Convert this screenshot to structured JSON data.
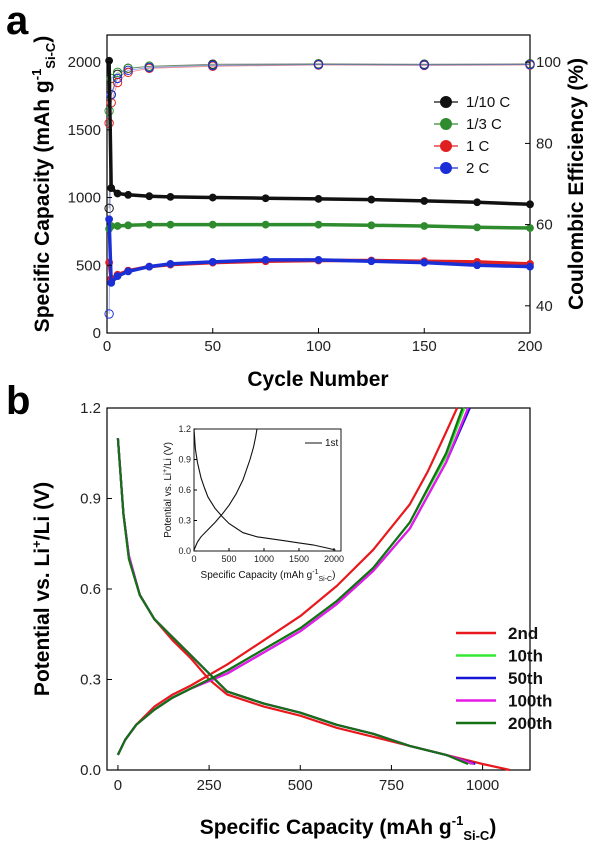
{
  "chart_data": [
    {
      "panel_label": "a",
      "type": "scatter",
      "xlabel": "Cycle Number",
      "ylabel_main": "Specific Capacity (mAh g",
      "ylabel_sup": "-1",
      "ylabel_sub": "Si-C",
      "y2label": "Coulombic Efficiency (%)",
      "xlim": [
        0,
        200
      ],
      "ylim": [
        0,
        2200
      ],
      "y2lim": [
        33.3,
        106.7
      ],
      "xticks": [
        "0",
        "50",
        "100",
        "150",
        "200"
      ],
      "yticks": [
        "0",
        "500",
        "1000",
        "1500",
        "2000"
      ],
      "y2ticks": [
        "40",
        "60",
        "80",
        "100"
      ],
      "legend": {
        "position": "right",
        "entries": [
          "1/10 C",
          "1/3 C",
          "1 C",
          "2 C"
        ]
      },
      "series": [
        {
          "name": "1/10 C",
          "color": "#111111",
          "capacity": {
            "x": [
              1,
              2,
              5,
              10,
              20,
              30,
              50,
              75,
              100,
              125,
              150,
              175,
              200
            ],
            "y": [
              2010,
              1070,
              1030,
              1020,
              1010,
              1005,
              1000,
              995,
              990,
              985,
              975,
              965,
              950
            ]
          },
          "efficiency": {
            "x": [
              1,
              2,
              5,
              10,
              20,
              50,
              100,
              150,
              200
            ],
            "y": [
              64,
              92,
              97,
              98.5,
              99,
              99.5,
              99.6,
              99.5,
              99.6
            ]
          }
        },
        {
          "name": "1/3 C",
          "color": "#2e8b2e",
          "capacity": {
            "x": [
              1,
              2,
              5,
              10,
              20,
              30,
              50,
              75,
              100,
              125,
              150,
              175,
              200
            ],
            "y": [
              770,
              790,
              790,
              795,
              800,
              800,
              800,
              800,
              800,
              795,
              790,
              780,
              775
            ]
          },
          "efficiency": {
            "x": [
              1,
              2,
              5,
              10,
              20,
              50,
              100,
              150,
              200
            ],
            "y": [
              88,
              96,
              97.5,
              98.5,
              99,
              99.3,
              99.5,
              99.4,
              99.5
            ]
          }
        },
        {
          "name": "1 C",
          "color": "#e02020",
          "capacity": {
            "x": [
              1,
              2,
              5,
              10,
              20,
              30,
              50,
              75,
              100,
              125,
              150,
              175,
              200
            ],
            "y": [
              520,
              400,
              430,
              460,
              490,
              505,
              520,
              530,
              535,
              535,
              530,
              525,
              510
            ]
          },
          "efficiency": {
            "x": [
              1,
              2,
              5,
              10,
              20,
              50,
              100,
              150,
              200
            ],
            "y": [
              85,
              90,
              95,
              97.5,
              98.5,
              99,
              99.3,
              99.2,
              99.3
            ]
          }
        },
        {
          "name": "2 C",
          "color": "#1b2fd6",
          "capacity": {
            "x": [
              1,
              2,
              5,
              10,
              20,
              30,
              50,
              75,
              100,
              125,
              150,
              175,
              200
            ],
            "y": [
              840,
              370,
              420,
              455,
              490,
              510,
              525,
              540,
              540,
              530,
              520,
              500,
              490
            ]
          },
          "efficiency": {
            "x": [
              1,
              2,
              5,
              10,
              20,
              50,
              100,
              150,
              200
            ],
            "y": [
              38,
              92,
              96,
              98,
              98.7,
              99.2,
              99.4,
              99.3,
              99.4
            ]
          }
        }
      ]
    },
    {
      "panel_label": "b",
      "type": "line",
      "xlabel_main": "Specific Capacity (mAh g",
      "xlabel_sup": "-1",
      "xlabel_sub": "Si-C",
      "ylabel_main": "Potential vs. Li",
      "ylabel_sup": "+",
      "ylabel_rest": "/Li (V)",
      "xlim": [
        -30,
        1130
      ],
      "ylim": [
        0.0,
        1.2
      ],
      "xticks": [
        "0",
        "250",
        "500",
        "750",
        "1000"
      ],
      "yticks": [
        "0.0",
        "0.3",
        "0.6",
        "0.9",
        "1.2"
      ],
      "legend": {
        "position": "center-right",
        "entries": [
          "2nd",
          "10th",
          "50th",
          "100th",
          "200th"
        ]
      },
      "series": [
        {
          "name": "2nd",
          "color": "#e8191d",
          "discharge": {
            "x": [
              0,
              15,
              30,
              60,
              100,
              150,
              200,
              250,
              300,
              400,
              500,
              600,
              700,
              800,
              900,
              1000,
              1075
            ],
            "y": [
              1.1,
              0.85,
              0.7,
              0.58,
              0.5,
              0.43,
              0.37,
              0.3,
              0.25,
              0.21,
              0.18,
              0.14,
              0.11,
              0.08,
              0.05,
              0.02,
              0.0
            ]
          },
          "charge": {
            "x": [
              0,
              20,
              50,
              100,
              150,
              200,
              300,
              400,
              500,
              600,
              700,
              800,
              850,
              900,
              930
            ],
            "y": [
              0.05,
              0.1,
              0.15,
              0.21,
              0.25,
              0.28,
              0.35,
              0.43,
              0.51,
              0.61,
              0.73,
              0.88,
              0.99,
              1.12,
              1.2
            ]
          }
        },
        {
          "name": "10th",
          "color": "#33e833",
          "discharge": {
            "x": [
              0,
              15,
              30,
              60,
              100,
              150,
              200,
              250,
              300,
              400,
              500,
              600,
              700,
              800,
              900,
              970
            ],
            "y": [
              1.1,
              0.85,
              0.7,
              0.58,
              0.5,
              0.44,
              0.38,
              0.32,
              0.26,
              0.22,
              0.19,
              0.15,
              0.12,
              0.08,
              0.05,
              0.02
            ]
          },
          "charge": {
            "x": [
              0,
              20,
              50,
              100,
              150,
              200,
              300,
              400,
              500,
              600,
              700,
              800,
              900,
              950
            ],
            "y": [
              0.05,
              0.1,
              0.15,
              0.2,
              0.24,
              0.27,
              0.33,
              0.4,
              0.47,
              0.56,
              0.67,
              0.82,
              1.04,
              1.2
            ]
          }
        },
        {
          "name": "50th",
          "color": "#1515d6",
          "discharge": {
            "x": [
              0,
              15,
              30,
              60,
              100,
              150,
              200,
              250,
              300,
              400,
              500,
              600,
              700,
              800,
              900,
              980
            ],
            "y": [
              1.1,
              0.85,
              0.71,
              0.58,
              0.5,
              0.44,
              0.38,
              0.32,
              0.26,
              0.22,
              0.19,
              0.15,
              0.12,
              0.08,
              0.05,
              0.02
            ]
          },
          "charge": {
            "x": [
              0,
              20,
              50,
              100,
              150,
              200,
              300,
              400,
              500,
              600,
              700,
              800,
              900,
              965
            ],
            "y": [
              0.05,
              0.1,
              0.15,
              0.2,
              0.24,
              0.27,
              0.32,
              0.39,
              0.46,
              0.55,
              0.66,
              0.8,
              1.02,
              1.2
            ]
          }
        },
        {
          "name": "100th",
          "color": "#e81ae8",
          "discharge": {
            "x": [
              0,
              15,
              30,
              60,
              100,
              150,
              200,
              250,
              300,
              400,
              500,
              600,
              700,
              800,
              900,
              975
            ],
            "y": [
              1.1,
              0.85,
              0.71,
              0.58,
              0.5,
              0.44,
              0.38,
              0.32,
              0.26,
              0.22,
              0.19,
              0.15,
              0.12,
              0.08,
              0.05,
              0.02
            ]
          },
          "charge": {
            "x": [
              0,
              20,
              50,
              100,
              150,
              200,
              300,
              400,
              500,
              600,
              700,
              800,
              900,
              960
            ],
            "y": [
              0.05,
              0.1,
              0.15,
              0.2,
              0.24,
              0.27,
              0.32,
              0.39,
              0.46,
              0.55,
              0.66,
              0.8,
              1.02,
              1.2
            ]
          }
        },
        {
          "name": "200th",
          "color": "#157015",
          "discharge": {
            "x": [
              0,
              15,
              30,
              60,
              100,
              150,
              200,
              250,
              300,
              400,
              500,
              600,
              700,
              800,
              900,
              960
            ],
            "y": [
              1.1,
              0.85,
              0.7,
              0.58,
              0.5,
              0.44,
              0.38,
              0.32,
              0.26,
              0.22,
              0.19,
              0.15,
              0.12,
              0.08,
              0.05,
              0.02
            ]
          },
          "charge": {
            "x": [
              0,
              20,
              50,
              100,
              150,
              200,
              300,
              400,
              500,
              600,
              700,
              800,
              900,
              945
            ],
            "y": [
              0.05,
              0.1,
              0.15,
              0.2,
              0.24,
              0.27,
              0.33,
              0.4,
              0.47,
              0.56,
              0.67,
              0.82,
              1.05,
              1.2
            ]
          }
        }
      ],
      "inset": {
        "type": "line",
        "xlabel_main": "Specific Capacity (mAh g",
        "xlabel_sup": "-1",
        "xlabel_sub": "Si-C",
        "ylabel": "Potential vs. Li",
        "ylabel_sup": "+",
        "ylabel_rest": "/Li (V)",
        "xlim": [
          0,
          2100
        ],
        "ylim": [
          0.0,
          1.2
        ],
        "xticks": [
          "0",
          "500",
          "1000",
          "1500",
          "2000"
        ],
        "yticks": [
          "0.0",
          "0.3",
          "0.6",
          "0.9",
          "1.2"
        ],
        "legend": {
          "position": "top-right",
          "entries": [
            "1st"
          ]
        },
        "series": [
          {
            "name": "1st",
            "color": "#111111",
            "discharge": {
              "x": [
                0,
                20,
                50,
                100,
                150,
                200,
                300,
                400,
                500,
                700,
                900,
                1100,
                1300,
                1500,
                1700,
                1900,
                2020
              ],
              "y": [
                1.2,
                1.0,
                0.87,
                0.72,
                0.62,
                0.53,
                0.42,
                0.34,
                0.27,
                0.18,
                0.14,
                0.12,
                0.1,
                0.08,
                0.06,
                0.03,
                0.01
              ]
            },
            "charge": {
              "x": [
                0,
                50,
                100,
                200,
                300,
                400,
                500,
                600,
                700,
                800,
                850,
                880,
                900
              ],
              "y": [
                0.01,
                0.09,
                0.14,
                0.21,
                0.28,
                0.36,
                0.45,
                0.56,
                0.7,
                0.9,
                1.02,
                1.12,
                1.2
              ]
            }
          }
        ]
      }
    }
  ]
}
